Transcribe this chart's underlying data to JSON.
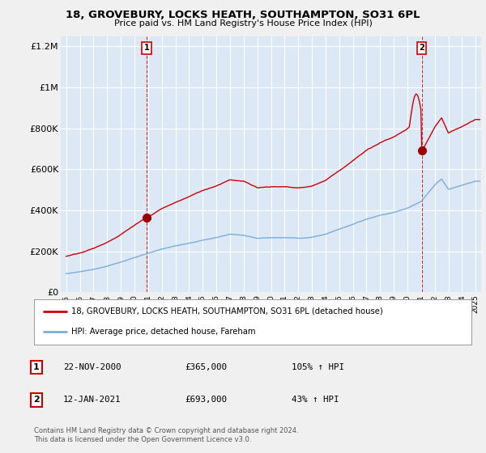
{
  "title": "18, GROVEBURY, LOCKS HEATH, SOUTHAMPTON, SO31 6PL",
  "subtitle": "Price paid vs. HM Land Registry's House Price Index (HPI)",
  "ylim": [
    0,
    1250000
  ],
  "yticks": [
    0,
    200000,
    400000,
    600000,
    800000,
    1000000,
    1200000
  ],
  "ytick_labels": [
    "£0",
    "£200K",
    "£400K",
    "£600K",
    "£800K",
    "£1M",
    "£1.2M"
  ],
  "bg_color": "#f0f0f0",
  "plot_bg_color": "#dce8f5",
  "grid_color": "#ffffff",
  "legend_label_red": "18, GROVEBURY, LOCKS HEATH, SOUTHAMPTON, SO31 6PL (detached house)",
  "legend_label_blue": "HPI: Average price, detached house, Fareham",
  "note1_date": "22-NOV-2000",
  "note1_price": "£365,000",
  "note1_hpi": "105% ↑ HPI",
  "note2_date": "12-JAN-2021",
  "note2_price": "£693,000",
  "note2_hpi": "43% ↑ HPI",
  "footer": "Contains HM Land Registry data © Crown copyright and database right 2024.\nThis data is licensed under the Open Government Licence v3.0.",
  "red_color": "#cc0000",
  "blue_color": "#7aaddc",
  "marker_dot_color": "#990000",
  "buy1_year": 2000.9,
  "buy1_price": 365000,
  "buy2_year": 2021.04,
  "buy2_price": 693000,
  "xlim_left": 1994.6,
  "xlim_right": 2025.4
}
